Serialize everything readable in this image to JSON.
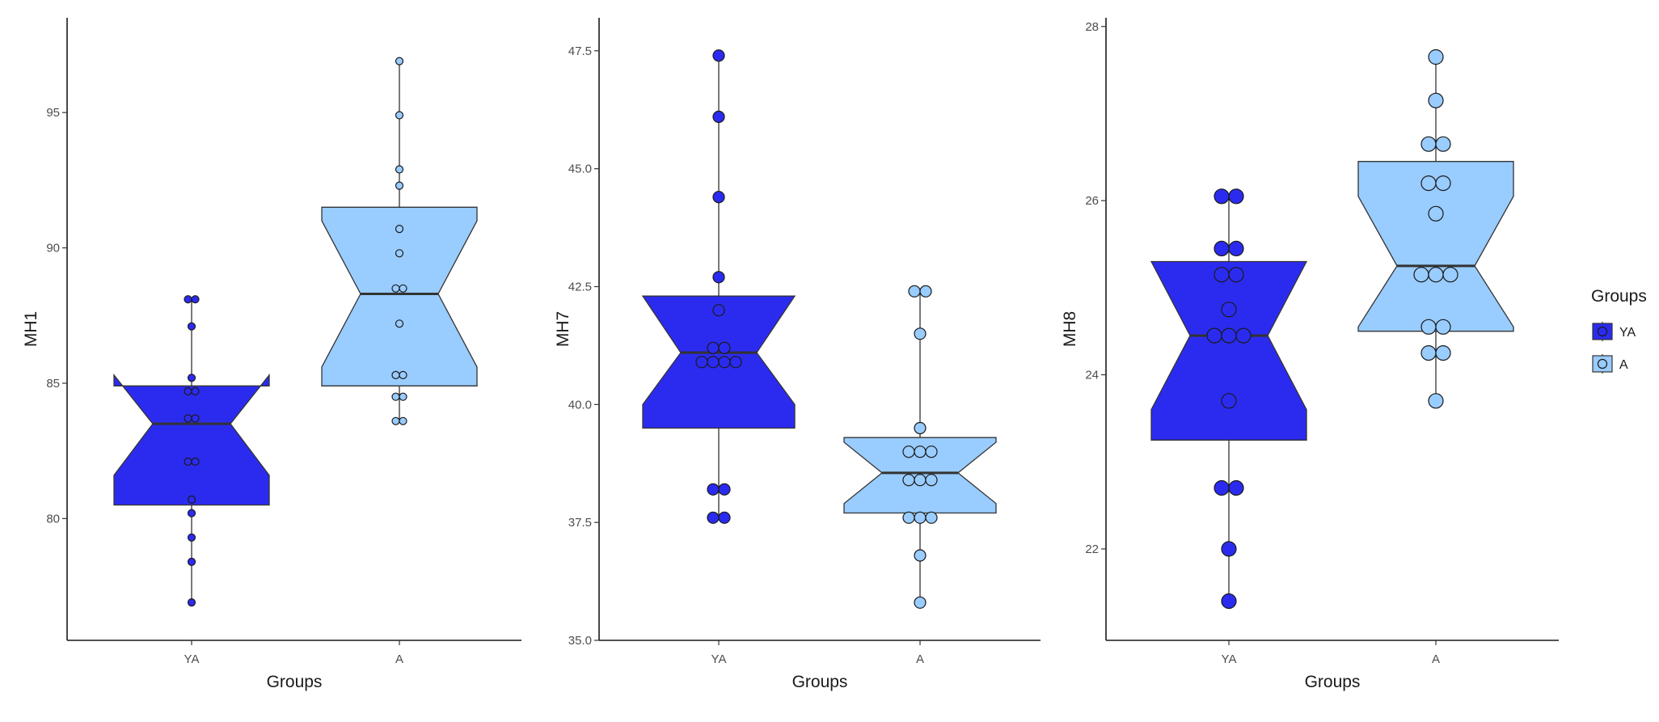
{
  "colors": {
    "YA": "#2b2bf0",
    "A": "#99ccff",
    "outline": "#333333"
  },
  "legend": {
    "title": "Groups",
    "items": [
      {
        "key": "YA",
        "label": "YA"
      },
      {
        "key": "A",
        "label": "A"
      }
    ]
  },
  "chart_data": [
    {
      "id": "mh1",
      "type": "box",
      "xlabel": "Groups",
      "ylabel": "MH1",
      "categories": [
        "YA",
        "A"
      ],
      "ylim": [
        75.5,
        98.5
      ],
      "yticks": [
        80,
        85,
        90,
        95
      ],
      "ytick_labels": [
        "80",
        "85",
        "90",
        "95"
      ],
      "point_radius": 4.5,
      "boxes": [
        {
          "group": "YA",
          "lower_hinge": 80.5,
          "median": 83.5,
          "upper_hinge": 84.9,
          "notch_low": 81.6,
          "notch_high": 85.3,
          "whisker_low": 76.9,
          "whisker_high": 88.1,
          "points": [
            76.9,
            78.4,
            79.3,
            80.2,
            80.7,
            82.1,
            82.1,
            83.7,
            83.7,
            84.7,
            84.7,
            85.2,
            87.1,
            88.1,
            88.1
          ]
        },
        {
          "group": "A",
          "lower_hinge": 84.9,
          "median": 88.3,
          "upper_hinge": 91.5,
          "notch_low": 85.6,
          "notch_high": 91.0,
          "whisker_low": 83.6,
          "whisker_high": 96.9,
          "points": [
            83.6,
            83.6,
            84.5,
            84.5,
            85.3,
            85.3,
            87.2,
            88.5,
            88.5,
            89.8,
            90.7,
            92.3,
            92.9,
            94.9,
            96.9
          ]
        }
      ]
    },
    {
      "id": "mh7",
      "type": "box",
      "xlabel": "Groups",
      "ylabel": "MH7",
      "categories": [
        "YA",
        "A"
      ],
      "ylim": [
        35.0,
        48.2
      ],
      "yticks": [
        35.0,
        37.5,
        40.0,
        42.5,
        45.0,
        47.5
      ],
      "ytick_labels": [
        "35.0",
        "37.5",
        "40.0",
        "42.5",
        "45.0",
        "47.5"
      ],
      "point_radius": 7,
      "boxes": [
        {
          "group": "YA",
          "lower_hinge": 39.5,
          "median": 41.1,
          "upper_hinge": 42.3,
          "notch_low": 40.0,
          "notch_high": 42.3,
          "whisker_low": 37.6,
          "whisker_high": 47.4,
          "points": [
            37.6,
            37.6,
            38.2,
            38.2,
            40.9,
            40.9,
            40.9,
            40.9,
            41.2,
            41.2,
            42.0,
            42.7,
            44.4,
            46.1,
            47.4
          ]
        },
        {
          "group": "A",
          "lower_hinge": 37.7,
          "median": 38.55,
          "upper_hinge": 39.3,
          "notch_low": 37.9,
          "notch_high": 39.2,
          "whisker_low": 35.8,
          "whisker_high": 42.4,
          "points": [
            35.8,
            36.8,
            37.6,
            37.6,
            37.6,
            38.4,
            38.4,
            38.4,
            39.0,
            39.0,
            39.0,
            39.5,
            41.5,
            42.4,
            42.4
          ]
        }
      ]
    },
    {
      "id": "mh8",
      "type": "box",
      "xlabel": "Groups",
      "ylabel": "MH8",
      "categories": [
        "YA",
        "A"
      ],
      "ylim": [
        20.95,
        28.1
      ],
      "yticks": [
        22,
        24,
        26,
        28
      ],
      "ytick_labels": [
        "22",
        "24",
        "26",
        "28"
      ],
      "point_radius": 9,
      "boxes": [
        {
          "group": "YA",
          "lower_hinge": 23.25,
          "median": 24.45,
          "upper_hinge": 25.3,
          "notch_low": 23.6,
          "notch_high": 25.3,
          "whisker_low": 21.4,
          "whisker_high": 26.05,
          "points": [
            21.4,
            22.0,
            22.7,
            22.7,
            23.7,
            24.45,
            24.45,
            24.45,
            24.75,
            25.15,
            25.15,
            25.45,
            25.45,
            26.05,
            26.05
          ]
        },
        {
          "group": "A",
          "lower_hinge": 24.5,
          "median": 25.25,
          "upper_hinge": 26.45,
          "notch_low": 24.55,
          "notch_high": 26.05,
          "whisker_low": 23.7,
          "whisker_high": 27.65,
          "points": [
            23.7,
            24.25,
            24.25,
            24.55,
            24.55,
            25.15,
            25.15,
            25.15,
            25.85,
            26.2,
            26.2,
            26.65,
            26.65,
            27.15,
            27.65
          ]
        }
      ]
    }
  ]
}
